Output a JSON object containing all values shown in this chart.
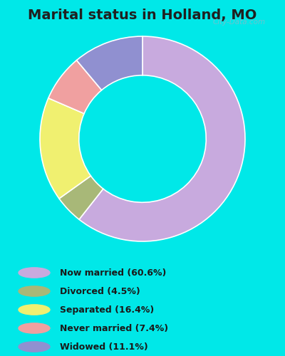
{
  "title": "Marital status in Holland, MO",
  "values": [
    60.6,
    4.5,
    16.4,
    7.4,
    11.1
  ],
  "colors": [
    "#c8aade",
    "#a8b878",
    "#f0f070",
    "#f0a0a0",
    "#9090d0"
  ],
  "legend_labels": [
    "Now married (60.6%)",
    "Divorced (4.5%)",
    "Separated (16.4%)",
    "Never married (7.4%)",
    "Widowed (11.1%)"
  ],
  "legend_colors": [
    "#c8aade",
    "#a8b878",
    "#f0f070",
    "#f0a0a0",
    "#9090d0"
  ],
  "background_chart": "#d8eed8",
  "background_outer": "#00e8e8",
  "title_fontsize": 14,
  "watermark": "City-Data.com",
  "start_angle": 90
}
